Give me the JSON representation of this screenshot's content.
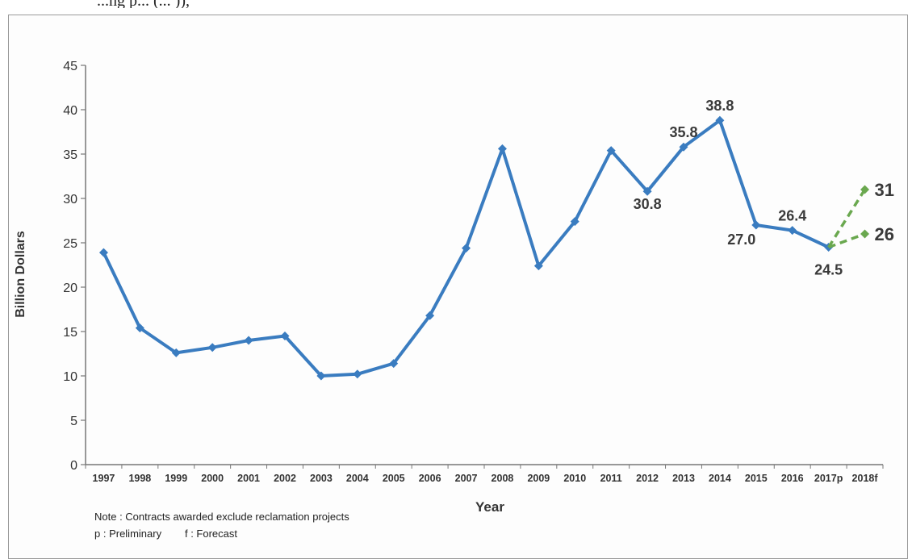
{
  "header_fragment": "...ng p...                                  (...                    )),",
  "chart_data": {
    "type": "line",
    "title": "",
    "xlabel": "Year",
    "ylabel": "Billion Dollars",
    "ylim": [
      0,
      45
    ],
    "yticks": [
      0,
      5,
      10,
      15,
      20,
      25,
      30,
      35,
      40,
      45
    ],
    "categories": [
      "1997",
      "1998",
      "1999",
      "2000",
      "2001",
      "2002",
      "2003",
      "2004",
      "2005",
      "2006",
      "2007",
      "2008",
      "2009",
      "2010",
      "2011",
      "2012",
      "2013",
      "2014",
      "2015",
      "2016",
      "2017p",
      "2018f"
    ],
    "grid": false,
    "series": [
      {
        "color": "#3a7cc0",
        "style": "solid",
        "values": [
          23.9,
          15.4,
          12.6,
          13.2,
          14.0,
          14.5,
          10.0,
          10.2,
          11.4,
          16.8,
          24.4,
          35.6,
          22.4,
          27.4,
          35.4,
          30.8,
          35.8,
          38.8,
          27.0,
          26.4,
          24.5,
          null
        ]
      },
      {
        "color": "#6aa84f",
        "style": "dashed",
        "x": [
          "2017p",
          "2018f"
        ],
        "values": [
          24.5,
          31
        ]
      },
      {
        "color": "#6aa84f",
        "style": "dashed",
        "x": [
          "2017p",
          "2018f"
        ],
        "values": [
          24.5,
          26
        ]
      }
    ],
    "data_labels": [
      {
        "category": "2012",
        "text": "30.8"
      },
      {
        "category": "2013",
        "text": "35.8"
      },
      {
        "category": "2014",
        "text": "38.8"
      },
      {
        "category": "2015",
        "text": "27.0"
      },
      {
        "category": "2016",
        "text": "26.4"
      },
      {
        "category": "2017p",
        "text": "24.5"
      },
      {
        "category": "2018f",
        "text": "31"
      },
      {
        "category": "2018f",
        "text": "26"
      }
    ]
  },
  "notes": [
    "Note : Contracts awarded exclude reclamation projects",
    "p : Preliminary        f : Forecast"
  ]
}
